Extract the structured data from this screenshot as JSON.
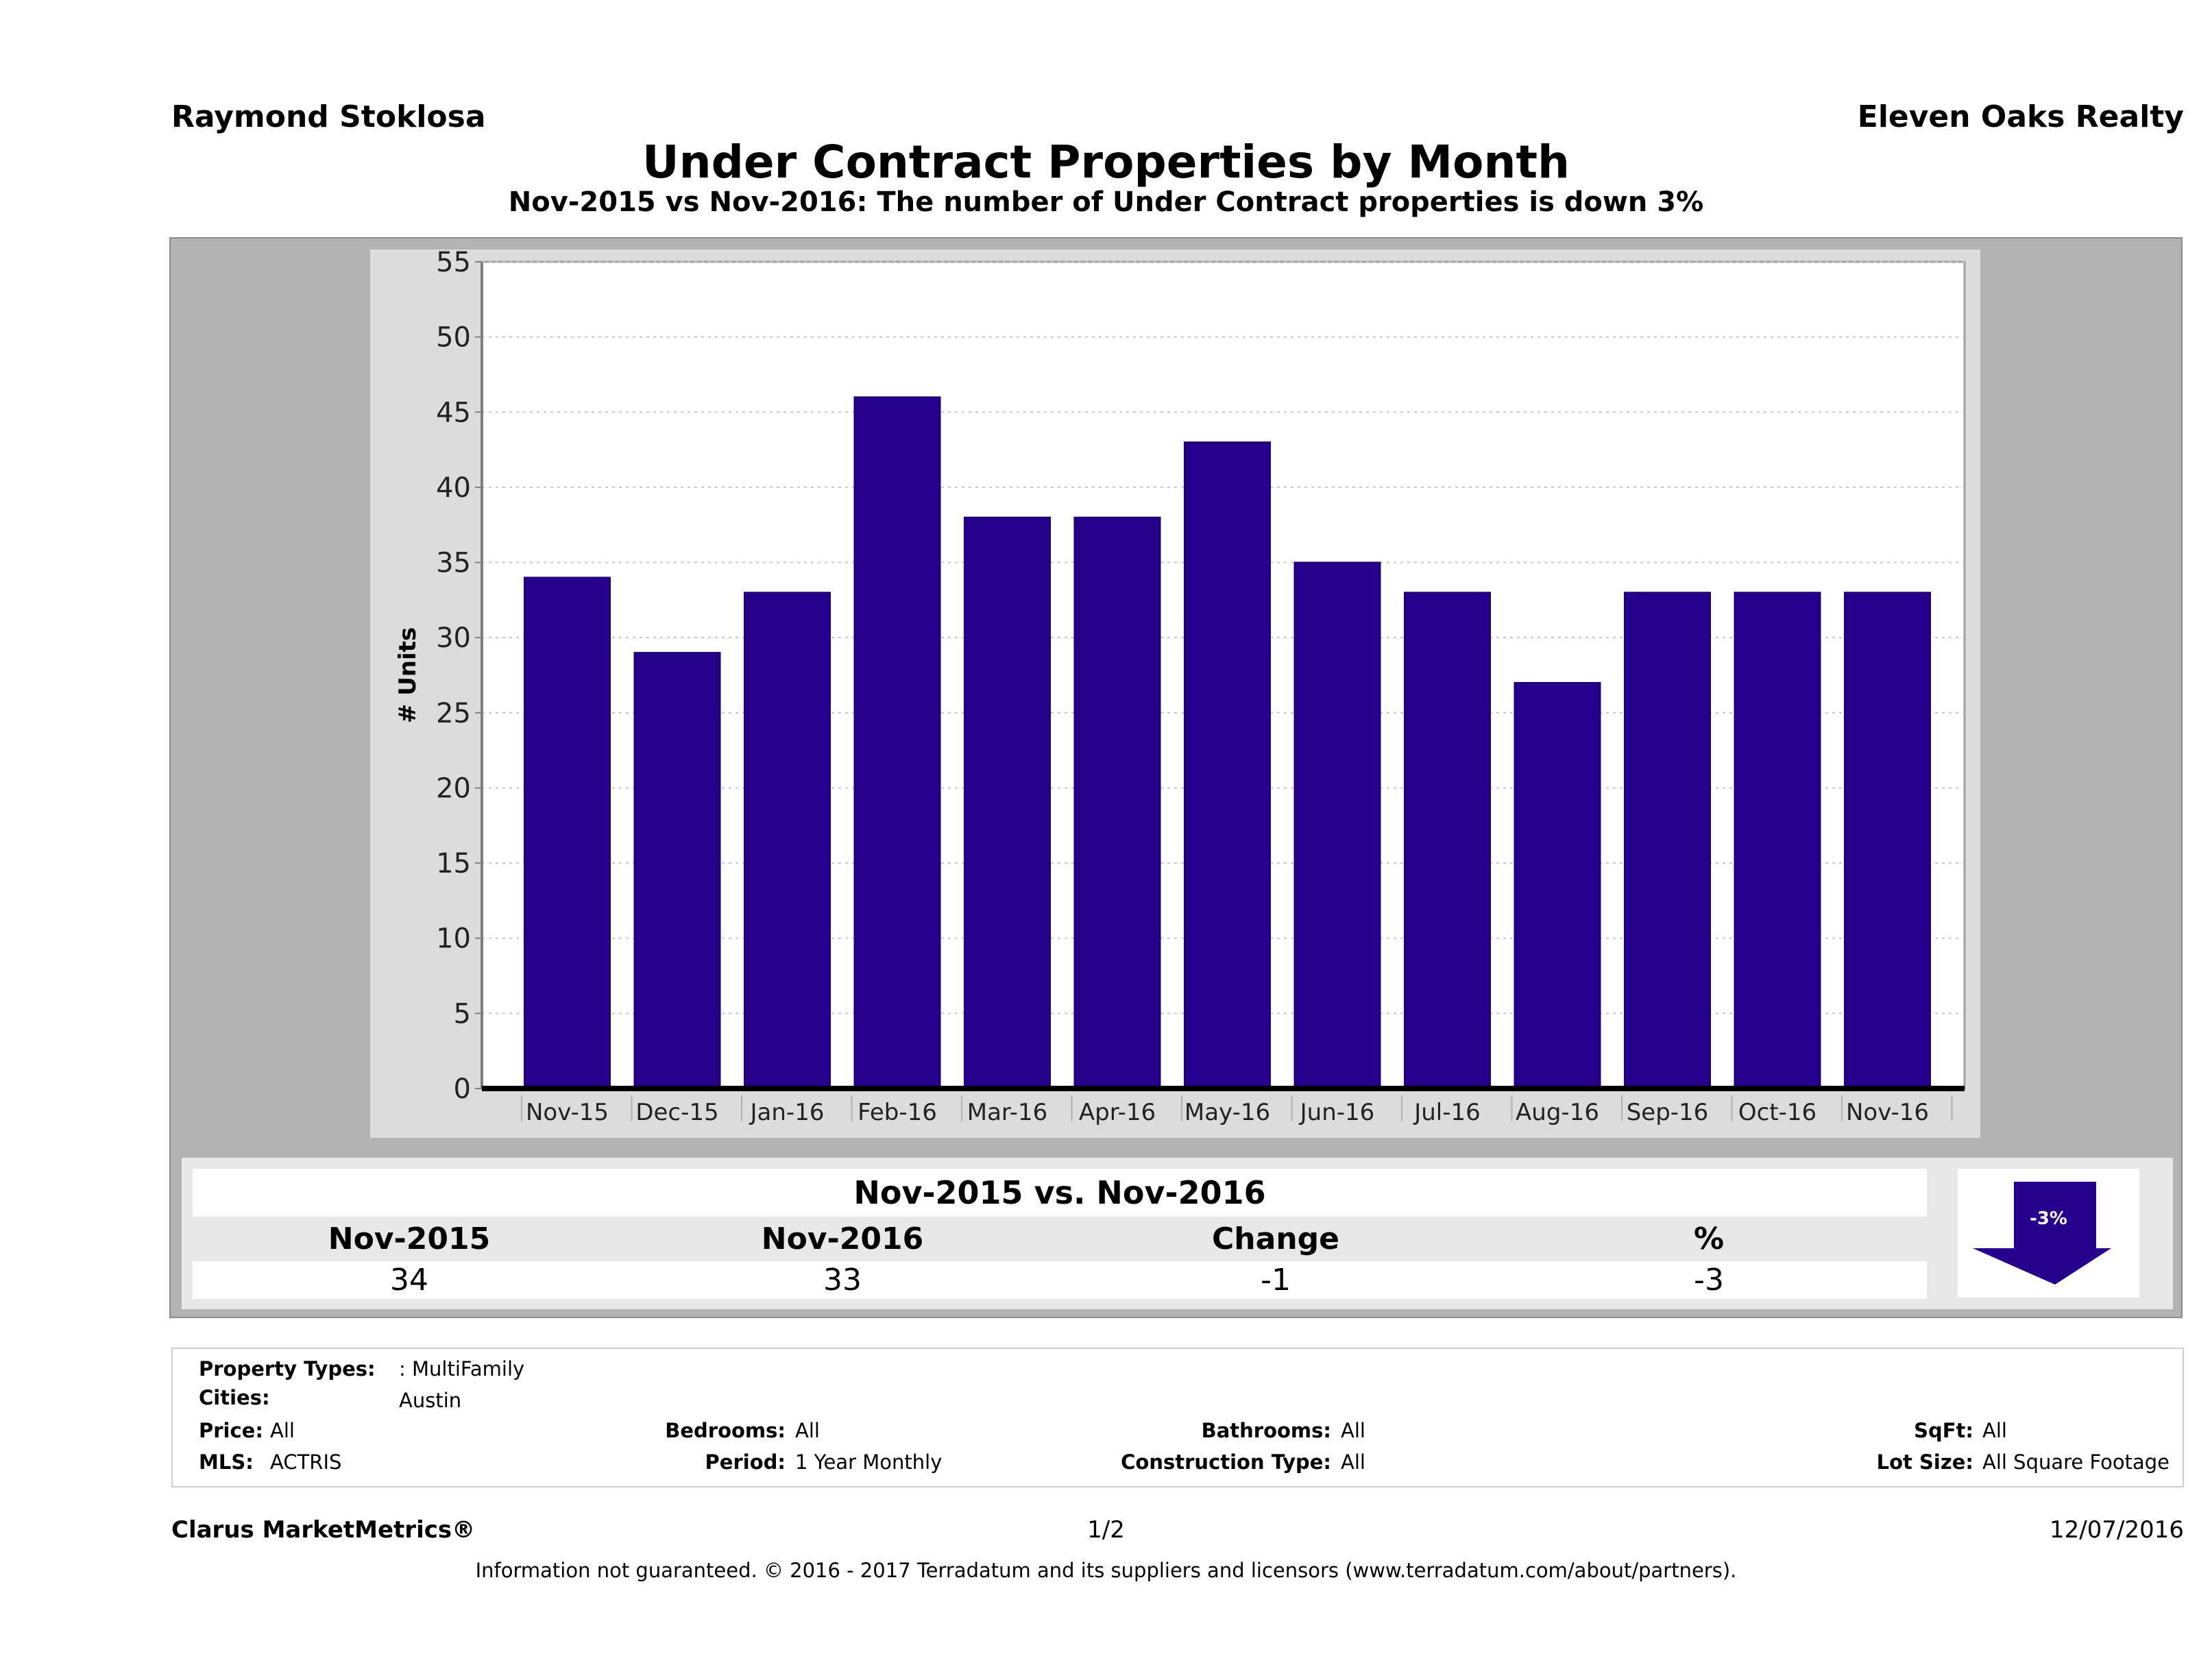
{
  "header": {
    "agent_name": "Raymond Stoklosa",
    "company": "Eleven Oaks Realty",
    "title": "Under Contract Properties by Month",
    "subtitle": "Nov-2015 vs Nov-2016: The number of Under Contract  properties is down 3%"
  },
  "chart_data": {
    "type": "bar",
    "title": "Under Contract Properties by Month",
    "xlabel": "",
    "ylabel": "# Units",
    "ylim": [
      0,
      55
    ],
    "yticks": [
      0,
      5,
      10,
      15,
      20,
      25,
      30,
      35,
      40,
      45,
      50,
      55
    ],
    "grid": true,
    "categories": [
      "Nov-15",
      "Dec-15",
      "Jan-16",
      "Feb-16",
      "Mar-16",
      "Apr-16",
      "May-16",
      "Jun-16",
      "Jul-16",
      "Aug-16",
      "Sep-16",
      "Oct-16",
      "Nov-16"
    ],
    "values": [
      34,
      29,
      33,
      46,
      38,
      38,
      43,
      35,
      33,
      27,
      33,
      33,
      33
    ],
    "bar_color": "#24008c"
  },
  "summary": {
    "title": "Nov-2015 vs. Nov-2016",
    "headers": [
      "Nov-2015",
      "Nov-2016",
      "Change",
      "%"
    ],
    "values": [
      "34",
      "33",
      "-1",
      "-3"
    ],
    "arrow_label": "-3%",
    "arrow_direction": "down",
    "arrow_color": "#24008c"
  },
  "filters": {
    "property_types": {
      "label": "Property Types:",
      "value": ": MultiFamily"
    },
    "cities": {
      "label": "Cities:",
      "value": "Austin"
    },
    "price": {
      "label": "Price:",
      "value": "All"
    },
    "mls": {
      "label": "MLS:",
      "value": "ACTRIS"
    },
    "bedrooms": {
      "label": "Bedrooms:",
      "value": "All"
    },
    "period": {
      "label": "Period:",
      "value": "1 Year Monthly"
    },
    "bathrooms": {
      "label": "Bathrooms:",
      "value": "All"
    },
    "construction_type": {
      "label": "Construction Type:",
      "value": "All"
    },
    "sqft": {
      "label": "SqFt:",
      "value": "All"
    },
    "lot_size": {
      "label": "Lot Size:",
      "value": "All Square Footage"
    }
  },
  "footer": {
    "brand": "Clarus MarketMetrics®",
    "page": "1/2",
    "date": "12/07/2016",
    "disclaimer": "Information not guaranteed. © 2016 - 2017 Terradatum and its suppliers and licensors (www.terradatum.com/about/partners)."
  }
}
